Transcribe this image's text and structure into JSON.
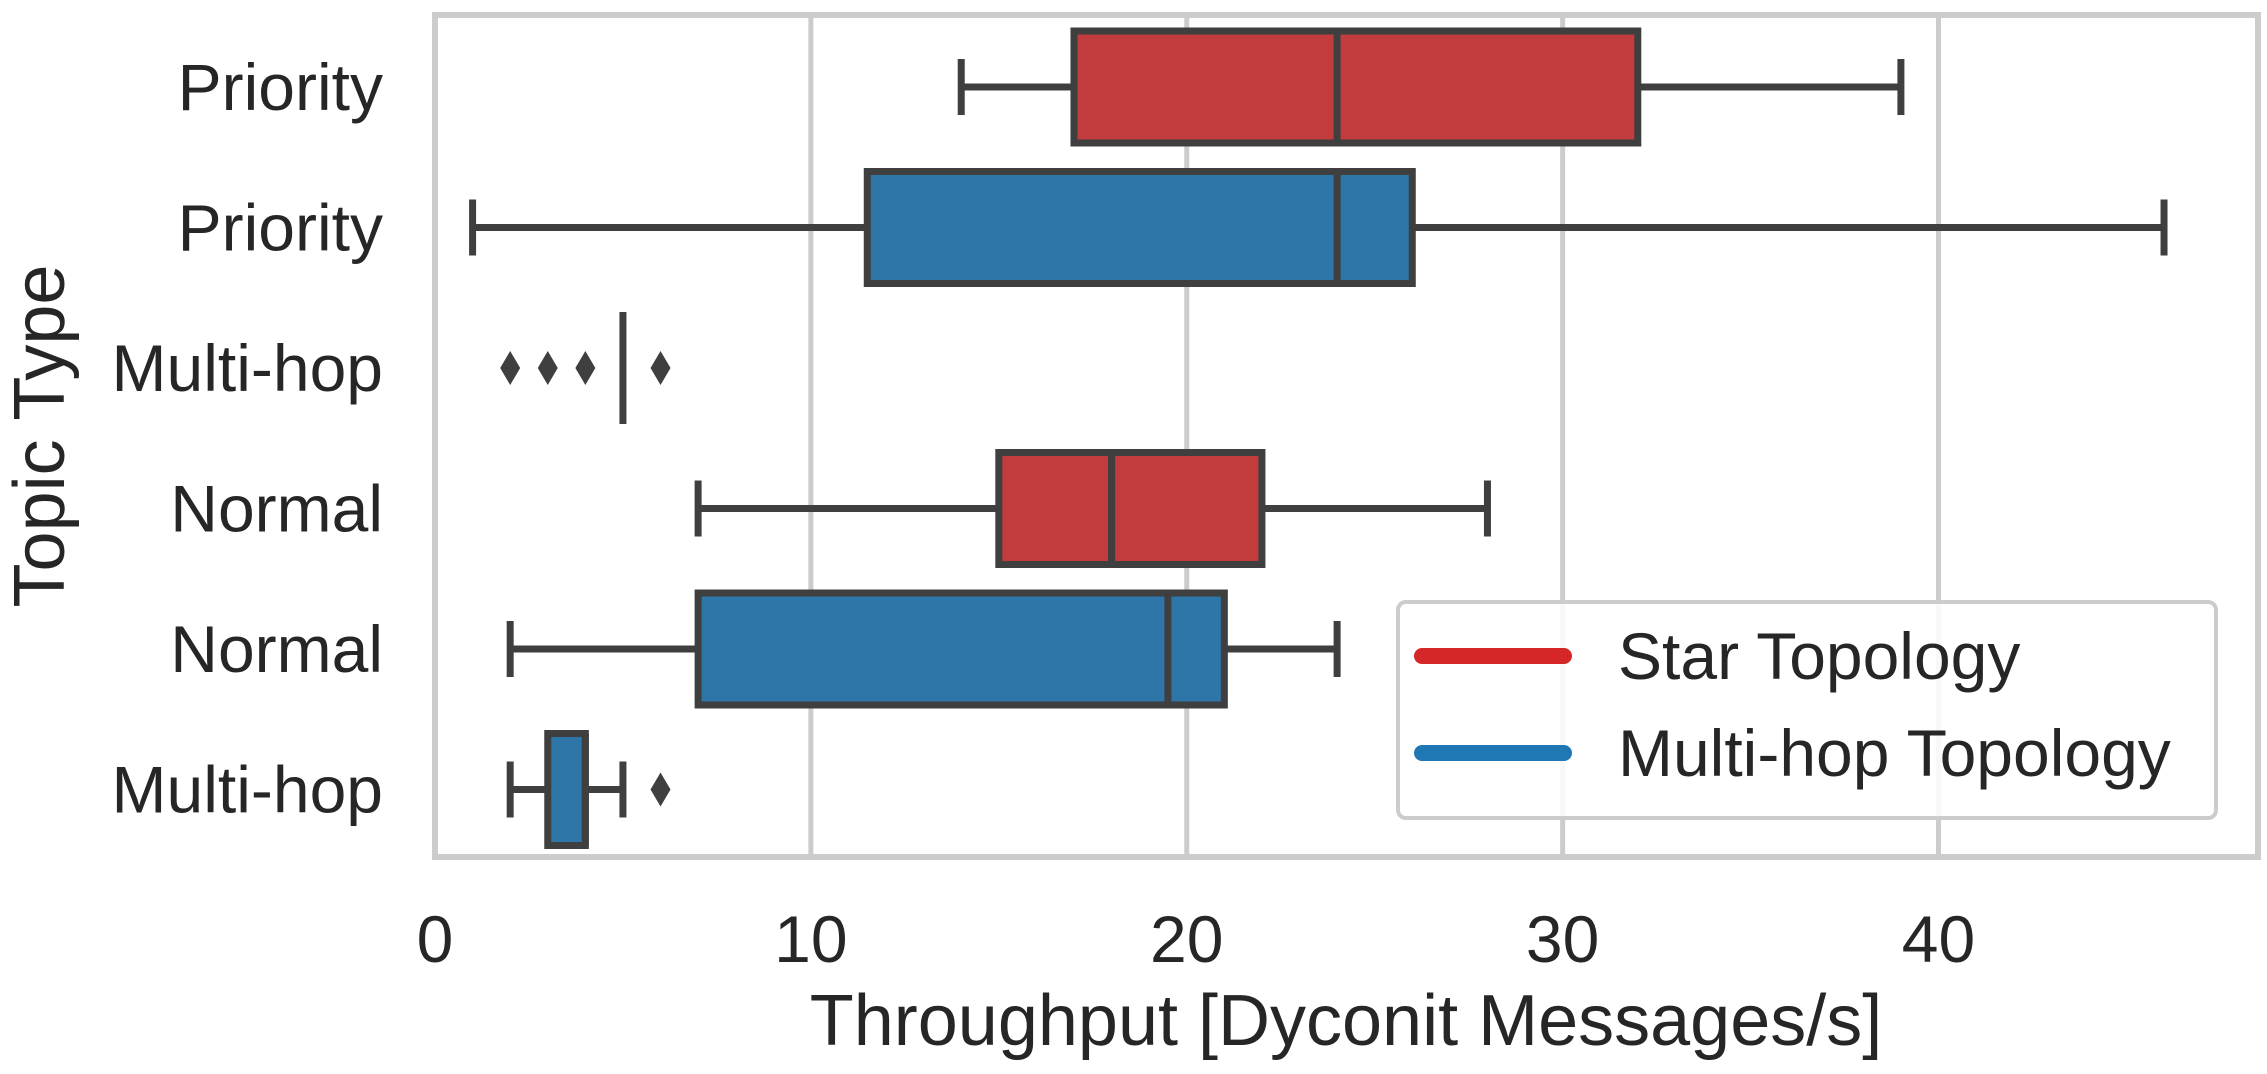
{
  "chart_data": {
    "type": "box",
    "xlabel": "Throughput [Dyconit Messages/s]",
    "ylabel": "Topic Type",
    "xlim": [
      0,
      48.5
    ],
    "xticks": [
      0,
      10,
      20,
      30,
      40
    ],
    "grid": "vertical",
    "orientation": "horizontal",
    "legend": {
      "position": "lower-right",
      "entries": [
        {
          "label": "Star Topology",
          "color": "#d62728"
        },
        {
          "label": "Multi-hop Topology",
          "color": "#1f77b4"
        }
      ]
    },
    "categories": [
      "Priority",
      "Priority",
      "Multi-hop",
      "Normal",
      "Normal",
      "Multi-hop"
    ],
    "boxes": [
      {
        "category": "Priority",
        "series": "Star Topology",
        "whisker_low": 14,
        "q1": 17,
        "median": 24,
        "q3": 32,
        "whisker_high": 39,
        "outliers": []
      },
      {
        "category": "Priority",
        "series": "Multi-hop Topology",
        "whisker_low": 1,
        "q1": 11.5,
        "median": 24,
        "q3": 26,
        "whisker_high": 46,
        "outliers": []
      },
      {
        "category": "Multi-hop",
        "series": "Star Topology",
        "whisker_low": 5,
        "q1": 5,
        "median": 5,
        "q3": 5,
        "whisker_high": 5,
        "outliers": [
          2,
          3,
          4,
          6
        ]
      },
      {
        "category": "Normal",
        "series": "Star Topology",
        "whisker_low": 7,
        "q1": 15,
        "median": 18,
        "q3": 22,
        "whisker_high": 28,
        "outliers": []
      },
      {
        "category": "Normal",
        "series": "Multi-hop Topology",
        "whisker_low": 2,
        "q1": 7,
        "median": 19.5,
        "q3": 21,
        "whisker_high": 24,
        "outliers": []
      },
      {
        "category": "Multi-hop",
        "series": "Multi-hop Topology",
        "whisker_low": 2,
        "q1": 3,
        "median": 4,
        "q3": 4,
        "whisker_high": 5,
        "outliers": [
          6
        ]
      }
    ],
    "colors": {
      "Star Topology": "#c23b3d",
      "Multi-hop Topology": "#2e75a8",
      "edge": "#3f3f3f",
      "grid": "#cccccc",
      "frame": "#cccccc"
    }
  }
}
